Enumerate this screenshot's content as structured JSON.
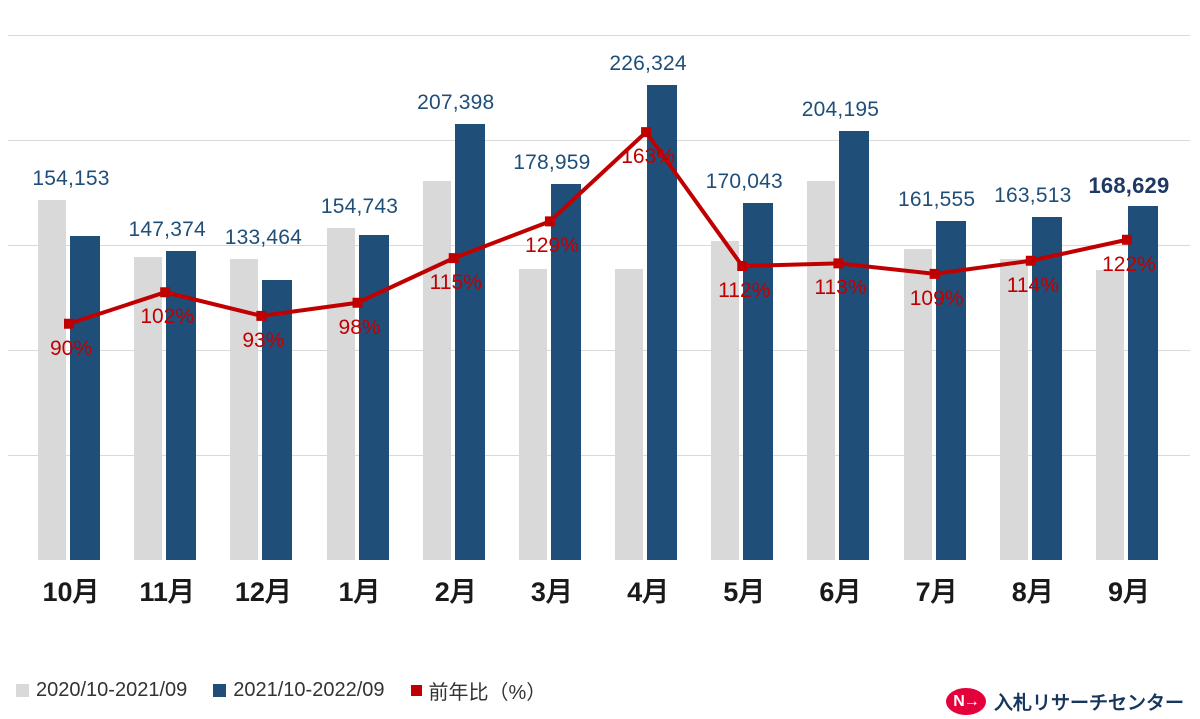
{
  "chart_data": {
    "type": "bar",
    "subtype": "grouped-bars-with-line-overlay",
    "categories": [
      "10月",
      "11月",
      "12月",
      "1月",
      "2月",
      "3月",
      "4月",
      "5月",
      "6月",
      "7月",
      "8月",
      "9月"
    ],
    "series": [
      {
        "name": "2020/10-2021/09",
        "kind": "bar",
        "color": "#d9d9d9",
        "values_estimated_from_ratio": true,
        "values": [
          171300,
          144500,
          143500,
          157900,
          180300,
          138700,
          138800,
          151800,
          180700,
          148200,
          143400,
          138200
        ]
      },
      {
        "name": "2021/10-2022/09",
        "kind": "bar",
        "color": "#1f4e79",
        "values": [
          154153,
          147374,
          133464,
          154743,
          207398,
          178959,
          226324,
          170043,
          204195,
          161555,
          163513,
          168629
        ],
        "labels": [
          "154,153",
          "147,374",
          "133,464",
          "154,743",
          "207,398",
          "178,959",
          "226,324",
          "170,043",
          "204,195",
          "161,555",
          "163,513",
          "168,629"
        ]
      },
      {
        "name": "前年比（%）",
        "kind": "line",
        "color": "#c00000",
        "values": [
          90,
          102,
          93,
          98,
          115,
          129,
          163,
          112,
          113,
          109,
          114,
          122
        ],
        "labels": [
          "90%",
          "102%",
          "93%",
          "98%",
          "115%",
          "129%",
          "163%",
          "112%",
          "113%",
          "109%",
          "114%",
          "122%"
        ]
      }
    ],
    "value_label_bold_index": 11,
    "ylim_primary": [
      0,
      250000
    ],
    "ylim_secondary_percent": [
      0,
      200
    ],
    "grid": true,
    "legend_position": "bottom-left",
    "title": "",
    "xlabel": "",
    "ylabel": ""
  },
  "legend": {
    "items": [
      {
        "label": "2020/10-2021/09",
        "color": "#d9d9d9"
      },
      {
        "label": "2021/10-2022/09",
        "color": "#1f4e79"
      },
      {
        "label": "前年比（%）",
        "color": "#c00000"
      }
    ]
  },
  "logo": {
    "mark": "N",
    "arrow": "→",
    "text": "入札リサーチセンター",
    "mark_color": "#e4003a",
    "text_color": "#17365d"
  }
}
